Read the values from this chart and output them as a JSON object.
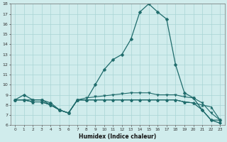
{
  "xlabel": "Humidex (Indice chaleur)",
  "x": [
    0,
    1,
    2,
    3,
    4,
    5,
    6,
    7,
    8,
    9,
    10,
    11,
    12,
    13,
    14,
    15,
    16,
    17,
    18,
    19,
    20,
    21,
    22,
    23
  ],
  "line1": [
    8.5,
    9.0,
    8.5,
    8.5,
    8.2,
    7.5,
    7.2,
    8.5,
    8.5,
    10.0,
    11.5,
    12.5,
    13.0,
    14.5,
    17.2,
    18.0,
    17.2,
    16.5,
    12.0,
    9.2,
    8.7,
    7.5,
    6.5,
    6.5
  ],
  "line2": [
    8.5,
    8.5,
    8.5,
    8.5,
    8.0,
    7.5,
    7.2,
    8.5,
    8.7,
    8.8,
    8.9,
    9.0,
    9.1,
    9.2,
    9.2,
    9.2,
    9.0,
    9.0,
    9.0,
    8.8,
    8.7,
    8.2,
    7.2,
    6.5
  ],
  "line3": [
    8.5,
    8.5,
    8.3,
    8.3,
    8.0,
    7.5,
    7.2,
    8.5,
    8.5,
    8.5,
    8.5,
    8.5,
    8.5,
    8.5,
    8.5,
    8.5,
    8.5,
    8.5,
    8.5,
    8.3,
    8.2,
    8.0,
    7.8,
    6.5
  ],
  "line4": [
    8.5,
    8.5,
    8.3,
    8.3,
    8.0,
    7.5,
    7.2,
    8.5,
    8.5,
    8.5,
    8.5,
    8.5,
    8.5,
    8.5,
    8.5,
    8.5,
    8.5,
    8.5,
    8.5,
    8.3,
    8.2,
    7.5,
    6.5,
    6.2
  ],
  "line5": [
    8.5,
    8.5,
    8.3,
    8.3,
    8.0,
    7.5,
    7.2,
    8.5,
    8.5,
    8.5,
    8.5,
    8.5,
    8.5,
    8.5,
    8.5,
    8.5,
    8.5,
    8.5,
    8.5,
    8.3,
    8.2,
    7.5,
    6.5,
    6.2
  ],
  "color": "#1e6b6b",
  "bg_color": "#d0ecec",
  "grid_color": "#a8d4d4",
  "ylim": [
    6,
    18
  ],
  "yticks": [
    6,
    7,
    8,
    9,
    10,
    11,
    12,
    13,
    14,
    15,
    16,
    17,
    18
  ],
  "marker1": "D",
  "marker2": "v",
  "marker3": "^",
  "marker4": "D",
  "marker5": "D"
}
